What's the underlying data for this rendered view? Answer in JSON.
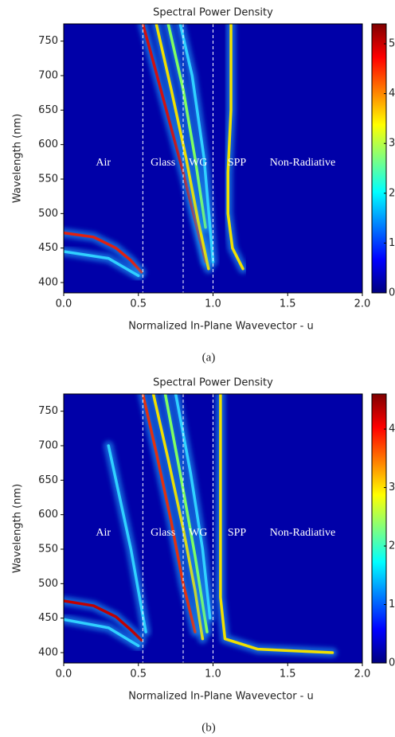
{
  "chart_data": [
    {
      "type": "line",
      "title": "Spectral Power Density",
      "xlabel": "Normalized In-Plane Wavevector - u",
      "ylabel": "Wavelength (nm)",
      "caption": "(a)",
      "xlim": [
        0,
        2
      ],
      "xticks": [
        {
          "value": 0,
          "label": "0.0"
        },
        0.5,
        {
          "value": 1,
          "label": "1.0"
        },
        1.5,
        {
          "value": 2,
          "label": "2.0"
        }
      ],
      "ylim": [
        385,
        775
      ],
      "yticks": [
        400,
        450,
        500,
        550,
        600,
        650,
        700,
        750
      ],
      "zlim": [
        0,
        5.4
      ],
      "zticks": [
        0,
        1,
        2,
        3,
        4,
        5
      ],
      "colormap": [
        "#00007f",
        "#0000ff",
        "#007fff",
        "#00ffff",
        "#7fff7f",
        "#ffff00",
        "#ff7f00",
        "#ff0000",
        "#7f0000"
      ],
      "background_color": "#0000a8",
      "boundaries": [
        0.53,
        0.8,
        1.0
      ],
      "regions": [
        "Air",
        "Glass",
        "WG",
        "SPP",
        "Non-Radiative"
      ],
      "series": [
        {
          "color": "#e02010",
          "x": [
            0,
            0.2,
            0.35,
            0.45,
            0.52
          ],
          "values": [
            472,
            466,
            450,
            432,
            415
          ]
        },
        {
          "color": "#30d0ff",
          "x": [
            0,
            0.3,
            0.5
          ],
          "values": [
            445,
            435,
            410
          ]
        },
        {
          "color": "#d01010",
          "x": [
            0.53,
            0.6,
            0.7,
            0.8,
            0.88,
            0.95
          ],
          "values": [
            775,
            720,
            640,
            560,
            490,
            430
          ]
        },
        {
          "color": "#f0e000",
          "x": [
            0.62,
            0.72,
            0.82,
            0.9,
            0.97
          ],
          "values": [
            775,
            680,
            580,
            490,
            420
          ]
        },
        {
          "color": "#80ff60",
          "x": [
            0.7,
            0.8,
            0.88,
            0.95
          ],
          "values": [
            775,
            680,
            580,
            480
          ]
        },
        {
          "color": "#30d0ff",
          "x": [
            0.78,
            0.86,
            0.94,
            1.0
          ],
          "values": [
            775,
            700,
            580,
            430
          ]
        },
        {
          "color": "#f0e000",
          "x": [
            1.12,
            1.12,
            1.1,
            1.1,
            1.13,
            1.2
          ],
          "values": [
            775,
            650,
            560,
            500,
            450,
            420
          ]
        }
      ]
    },
    {
      "type": "line",
      "title": "Spectral Power Density",
      "xlabel": "Normalized In-Plane Wavevector - u",
      "ylabel": "Wavelength (nm)",
      "caption": "(b)",
      "xlim": [
        0,
        2
      ],
      "xticks": [
        {
          "value": 0,
          "label": "0.0"
        },
        0.5,
        {
          "value": 1,
          "label": "1.0"
        },
        1.5,
        {
          "value": 2,
          "label": "2.0"
        }
      ],
      "ylim": [
        385,
        775
      ],
      "yticks": [
        400,
        450,
        500,
        550,
        600,
        650,
        700,
        750
      ],
      "zlim": [
        0,
        4.6
      ],
      "zticks": [
        0,
        1,
        2,
        3,
        4
      ],
      "colormap": [
        "#00007f",
        "#0000ff",
        "#007fff",
        "#00ffff",
        "#7fff7f",
        "#ffff00",
        "#ff7f00",
        "#ff0000",
        "#7f0000"
      ],
      "background_color": "#0000a8",
      "boundaries": [
        0.53,
        0.8,
        1.0
      ],
      "regions": [
        "Air",
        "Glass",
        "WG",
        "SPP",
        "Non-Radiative"
      ],
      "series": [
        {
          "color": "#c00000",
          "x": [
            0,
            0.2,
            0.35,
            0.45,
            0.52
          ],
          "values": [
            475,
            468,
            452,
            433,
            418
          ]
        },
        {
          "color": "#30d0ff",
          "x": [
            0,
            0.3,
            0.5
          ],
          "values": [
            448,
            436,
            410
          ]
        },
        {
          "color": "#30d0ff",
          "x": [
            0.3,
            0.45,
            0.55
          ],
          "values": [
            700,
            550,
            430
          ]
        },
        {
          "color": "#e03010",
          "x": [
            0.53,
            0.62,
            0.72,
            0.8,
            0.88
          ],
          "values": [
            775,
            690,
            590,
            500,
            430
          ]
        },
        {
          "color": "#f0e000",
          "x": [
            0.6,
            0.7,
            0.8,
            0.88,
            0.93
          ],
          "values": [
            775,
            680,
            580,
            490,
            420
          ]
        },
        {
          "color": "#80ff60",
          "x": [
            0.68,
            0.78,
            0.88,
            0.96
          ],
          "values": [
            775,
            660,
            540,
            430
          ]
        },
        {
          "color": "#30d0ff",
          "x": [
            0.75,
            0.85,
            0.93,
            0.98
          ],
          "values": [
            775,
            660,
            550,
            450
          ]
        },
        {
          "color": "#f0e000",
          "x": [
            1.05,
            1.05,
            1.05,
            1.08,
            1.3,
            1.8
          ],
          "values": [
            775,
            600,
            480,
            420,
            405,
            400
          ]
        }
      ]
    }
  ]
}
